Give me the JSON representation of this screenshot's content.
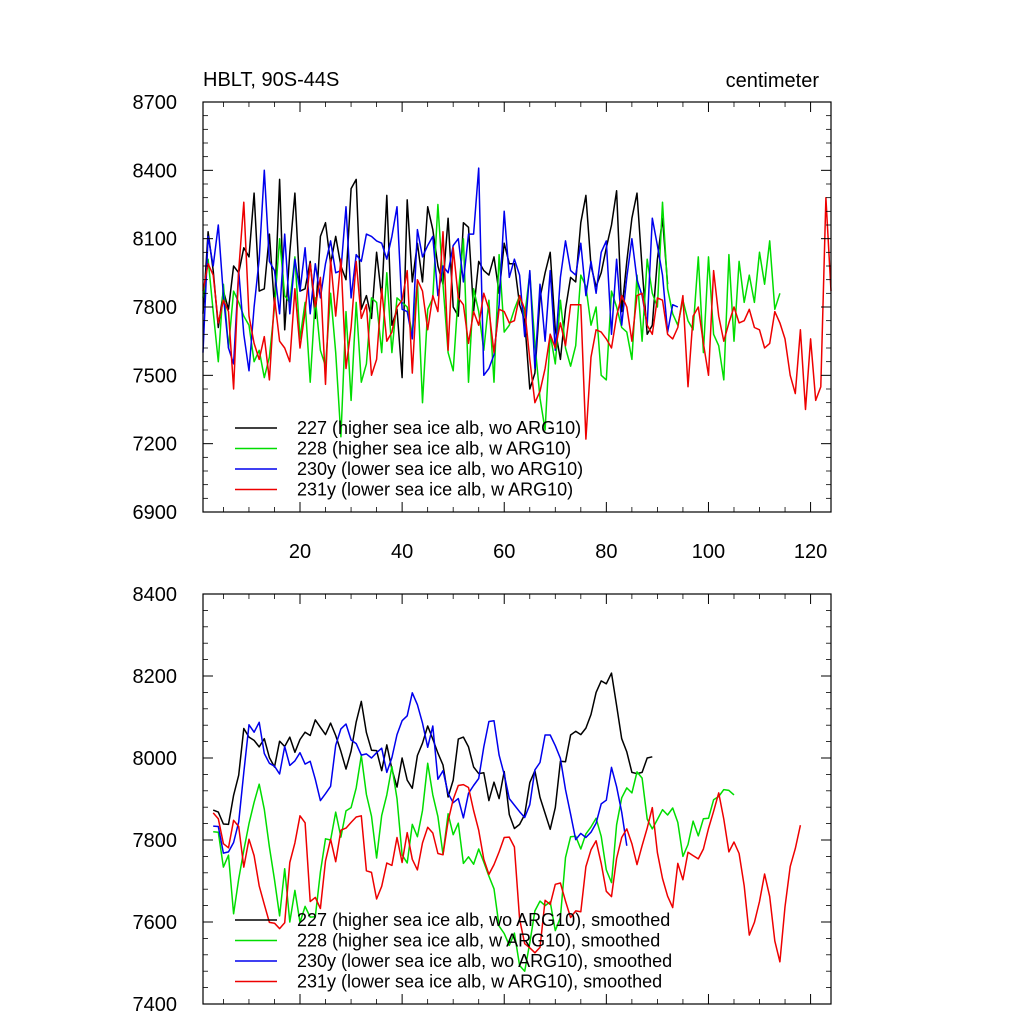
{
  "chart_data": [
    {
      "type": "line",
      "title": "HBLT, 90S-44S",
      "units": "centimeter",
      "xlim": [
        1,
        124
      ],
      "ylim": [
        6900,
        8700
      ],
      "xticks": [
        20,
        40,
        60,
        80,
        100,
        120
      ],
      "xtick_labels": [
        "20",
        "40",
        "60",
        "80",
        "100",
        "120"
      ],
      "yticks": [
        6900,
        7200,
        7500,
        7800,
        8100,
        8400,
        8700
      ],
      "ytick_labels": [
        "6900",
        "7200",
        "7500",
        "7800",
        "8100",
        "8400",
        "8700"
      ],
      "legend": "bottom-left",
      "series": [
        {
          "name": "227 (higher sea ice alb, wo ARG10)",
          "color": "#000000",
          "x_start": 1,
          "values": [
            7770,
            8130,
            7960,
            7710,
            7870,
            7790,
            7980,
            7950,
            8060,
            8020,
            8300,
            7870,
            7880,
            8120,
            7800,
            8360,
            7700,
            8040,
            8300,
            7870,
            7880,
            8000,
            7750,
            8110,
            8170,
            7990,
            8110,
            7980,
            7920,
            8320,
            8360,
            7790,
            7850,
            7750,
            8040,
            7840,
            8290,
            7720,
            7790,
            7490,
            8270,
            7910,
            8080,
            7910,
            8240,
            8140,
            7980,
            7900,
            8190,
            7800,
            7760,
            8170,
            8150,
            7780,
            8000,
            7960,
            7940,
            8020,
            7860,
            8080,
            7990,
            7990,
            7810,
            7740,
            7440,
            7510,
            7840,
            7950,
            8040,
            7700,
            7570,
            7790,
            7930,
            7910,
            8170,
            8290,
            7980,
            7890,
            7950,
            8060,
            8160,
            8310,
            7780,
            8000,
            8190,
            8300,
            7970,
            7680,
            7720,
            8010,
            8190,
            7900
          ]
        },
        {
          "name": "228 (higher sea ice alb, w ARG10)",
          "color": "#00dd00",
          "x_start": 1,
          "values": [
            7840,
            8010,
            7780,
            7560,
            7900,
            7620,
            7870,
            7820,
            7760,
            7720,
            7560,
            7610,
            7490,
            7580,
            7800,
            8100,
            7850,
            7820,
            8020,
            7660,
            7820,
            7470,
            7840,
            7610,
            7540,
            7860,
            7600,
            7230,
            7780,
            7390,
            7820,
            7470,
            7550,
            7840,
            7820,
            7600,
            7950,
            7600,
            7840,
            7820,
            7800,
            7680,
            7910,
            7380,
            7790,
            7840,
            8250,
            7900,
            7600,
            7520,
            7860,
            8100,
            7470,
            7880,
            7780,
            7610,
            7830,
            7470,
            8030,
            7690,
            7720,
            7790,
            7850,
            7760,
            7950,
            7640,
            7400,
            7260,
            7680,
            7550,
            7830,
            7620,
            7540,
            7630,
            7940,
            7890,
            7720,
            7800,
            7500,
            7480,
            7870,
            7800,
            7710,
            7690,
            7570,
            7940,
            7650,
            8010,
            7860,
            7800,
            8260,
            7880,
            7770,
            7720,
            7830,
            7740,
            7700,
            8020,
            7600,
            8020,
            7680,
            7630,
            7480,
            8030,
            7650,
            8000,
            7820,
            7940,
            7820,
            8040,
            7900,
            8090,
            7790,
            7860
          ]
        },
        {
          "name": "230y (lower sea ice alb, wo ARG10)",
          "color": "#0000ee",
          "x_start": 1,
          "values": [
            7600,
            8110,
            7980,
            8160,
            7850,
            7620,
            7550,
            7960,
            7680,
            7520,
            7800,
            8010,
            8400,
            8000,
            7960,
            7770,
            8120,
            7770,
            8010,
            7870,
            8060,
            7770,
            7990,
            7840,
            7990,
            8090,
            7950,
            7960,
            8240,
            7840,
            8030,
            8000,
            8120,
            8110,
            8090,
            8080,
            8010,
            8110,
            8240,
            7790,
            7780,
            7660,
            8140,
            8020,
            8070,
            8110,
            7850,
            7980,
            7950,
            8070,
            8100,
            7910,
            8120,
            8120,
            8410,
            7500,
            7530,
            7590,
            7810,
            8220,
            7930,
            8010,
            7940,
            7670,
            7960,
            7530,
            7900,
            7650,
            7960,
            7610,
            7930,
            8090,
            7960,
            7940,
            8080,
            7850,
            8000,
            7860,
            8040,
            8090,
            7680,
            8010,
            7720,
            7930,
            8100,
            7920,
            7850,
            7720,
            8190,
            8070,
            7940,
            7690,
            7810,
            7800
          ]
        },
        {
          "name": "231y (lower sea ice alb, w ARG10)",
          "color": "#ee0000",
          "x_start": 1,
          "values": [
            7870,
            7990,
            7940,
            7730,
            7830,
            7780,
            7440,
            7960,
            8260,
            7760,
            7640,
            7570,
            7670,
            7480,
            7840,
            7650,
            7620,
            7560,
            7880,
            7620,
            7780,
            7990,
            7800,
            7930,
            7460,
            8010,
            7760,
            8010,
            7530,
            7710,
            8000,
            7750,
            7810,
            7500,
            7570,
            7880,
            7650,
            7690,
            7800,
            7830,
            7960,
            7510,
            7920,
            7870,
            7700,
            7850,
            7780,
            8130,
            7610,
            8060,
            7840,
            7810,
            7640,
            7780,
            7720,
            7860,
            7790,
            7600,
            7790,
            7780,
            7730,
            7740,
            7850,
            7790,
            7570,
            7380,
            7430,
            7530,
            7680,
            7620,
            7730,
            7630,
            7810,
            7810,
            7810,
            7220,
            7580,
            7700,
            7690,
            7660,
            7620,
            7760,
            7850,
            7800,
            7650,
            7850,
            7860,
            7720,
            7680,
            7840,
            7830,
            7680,
            7660,
            7710,
            7850,
            7450,
            7760,
            7800,
            7640,
            7500,
            7960,
            7760,
            7650,
            7730,
            7800,
            7730,
            7740,
            7790,
            7710,
            7700,
            7620,
            7640,
            7780,
            7730,
            7660,
            7500,
            7420,
            7700,
            7350,
            7660,
            7390,
            7450,
            8280,
            7870
          ]
        }
      ]
    },
    {
      "type": "line",
      "xlim": [
        1,
        124
      ],
      "ylim": [
        7400,
        8400
      ],
      "xticks": [
        20,
        40,
        60,
        80,
        100,
        120
      ],
      "yticks": [
        7400,
        7600,
        7800,
        8000,
        8200,
        8400
      ],
      "ytick_labels": [
        "7400",
        "7600",
        "7800",
        "8000",
        "8200",
        "8400"
      ],
      "legend": "bottom-left",
      "series": [
        {
          "name": "227 (higher sea ice alb, wo ARG10), smoothed",
          "color": "#000000",
          "x_start": 3,
          "values": [
            7873,
            7868,
            7839,
            7838,
            7909,
            7958,
            8072,
            8051,
            8043,
            8027,
            8047,
            8001,
            7978,
            8041,
            8028,
            8051,
            8014,
            8045,
            8063,
            8055,
            8093,
            8075,
            8057,
            8085,
            8055,
            8016,
            7973,
            8017,
            8088,
            8138,
            8062,
            8019,
            8018,
            7969,
            8032,
            7973,
            7929,
            8000,
            7946,
            7926,
            8006,
            8036,
            8078,
            8046,
            8012,
            7983,
            7905,
            7946,
            8046,
            8051,
            8027,
            7978,
            7962,
            7964,
            7896,
            7941,
            7901,
            7967,
            7862,
            7828,
            7838,
            7862,
            7940,
            7969,
            7904,
            7865,
            7826,
            7879,
            7992,
            7991,
            8056,
            8065,
            8057,
            8073,
            8106,
            8160,
            8188,
            8181,
            8207,
            8128,
            8047,
            8015,
            7965,
            7962,
            7965,
            8000,
            8003
          ]
        },
        {
          "name": "228 (higher sea ice alb, w ARG10), smoothed",
          "color": "#00dd00",
          "x_start": 3,
          "values": [
            7820,
            7819,
            7734,
            7763,
            7620,
            7705,
            7775,
            7840,
            7892,
            7936,
            7875,
            7783,
            7703,
            7615,
            7730,
            7600,
            7677,
            7599,
            7638,
            7612,
            7613,
            7722,
            7803,
            7800,
            7868,
            7807,
            7871,
            7879,
            7927,
            8006,
            7911,
            7858,
            7756,
            7860,
            7910,
            7979,
            7901,
            7764,
            7744,
            7838,
            7808,
            7872,
            7987,
            7910,
            7857,
            7765,
            7864,
            7813,
            7841,
            7743,
            7759,
            7741,
            7778,
            7746,
            7712,
            7681,
            7590,
            7572,
            7543,
            7573,
            7494,
            7480,
            7549,
            7627,
            7651,
            7640,
            7649,
            7579,
            7611,
            7757,
            7808,
            7809,
            7778,
            7815,
            7832,
            7853,
            7809,
            7727,
            7696,
            7837,
            7903,
            7927,
            7915,
            7966,
            7951,
            7851,
            7827,
            7850,
            7874,
            7861,
            7878,
            7843,
            7760,
            7789,
            7846,
            7810,
            7852,
            7853,
            7898,
            7906,
            7923,
            7921,
            7910
          ]
        },
        {
          "name": "230y (lower sea ice alb, wo ARG10), smoothed",
          "color": "#0000ee",
          "x_start": 3,
          "values": [
            7834,
            7833,
            7768,
            7771,
            7794,
            7844,
            7965,
            8081,
            8063,
            8087,
            8011,
            7987,
            7980,
            7961,
            8028,
            7982,
            7993,
            8013,
            7985,
            7992,
            7948,
            7896,
            7913,
            7931,
            8031,
            8071,
            8083,
            8044,
            8035,
            8007,
            8010,
            8000,
            8013,
            8024,
            7965,
            8001,
            8057,
            8091,
            8103,
            8159,
            8130,
            8085,
            8026,
            8078,
            7948,
            7969,
            7914,
            7891,
            7901,
            7854,
            7914,
            7933,
            7950,
            8027,
            8089,
            8091,
            8007,
            7960,
            7901,
            7885,
            7869,
            7855,
            7886,
            7971,
            7989,
            8056,
            8056,
            8030,
            7999,
            7923,
            7863,
            7801,
            7816,
            7806,
            7819,
            7841,
            7888,
            7897,
            7977,
            7930,
            7868,
            7786
          ]
        },
        {
          "name": "231y (lower sea ice alb, w ARG10), smoothed",
          "color": "#ee0000",
          "x_start": 3,
          "values": [
            7866,
            7852,
            7791,
            7781,
            7848,
            7833,
            7734,
            7802,
            7762,
            7688,
            7643,
            7599,
            7597,
            7584,
            7598,
            7745,
            7793,
            7859,
            7842,
            7650,
            7660,
            7633,
            7749,
            7802,
            7747,
            7824,
            7829,
            7843,
            7856,
            7859,
            7725,
            7721,
            7656,
            7687,
            7744,
            7738,
            7806,
            7745,
            7818,
            7753,
            7727,
            7793,
            7831,
            7817,
            7767,
            7764,
            7846,
            7899,
            7933,
            7935,
            7928,
            7872,
            7824,
            7753,
            7716,
            7740,
            7771,
            7806,
            7807,
            7783,
            7607,
            7547,
            7537,
            7525,
            7538,
            7653,
            7643,
            7692,
            7695,
            7651,
            7611,
            7627,
            7625,
            7735,
            7776,
            7798,
            7743,
            7675,
            7662,
            7755,
            7806,
            7827,
            7791,
            7740,
            7786,
            7829,
            7879,
            7769,
            7706,
            7663,
            7635,
            7743,
            7703,
            7770,
            7762,
            7754,
            7778,
            7828,
            7870,
            7915,
            7851,
            7771,
            7795,
            7767,
            7688,
            7568,
            7599,
            7650,
            7717,
            7662,
            7554,
            7503,
            7637,
            7735,
            7779,
            7836
          ]
        }
      ]
    }
  ]
}
